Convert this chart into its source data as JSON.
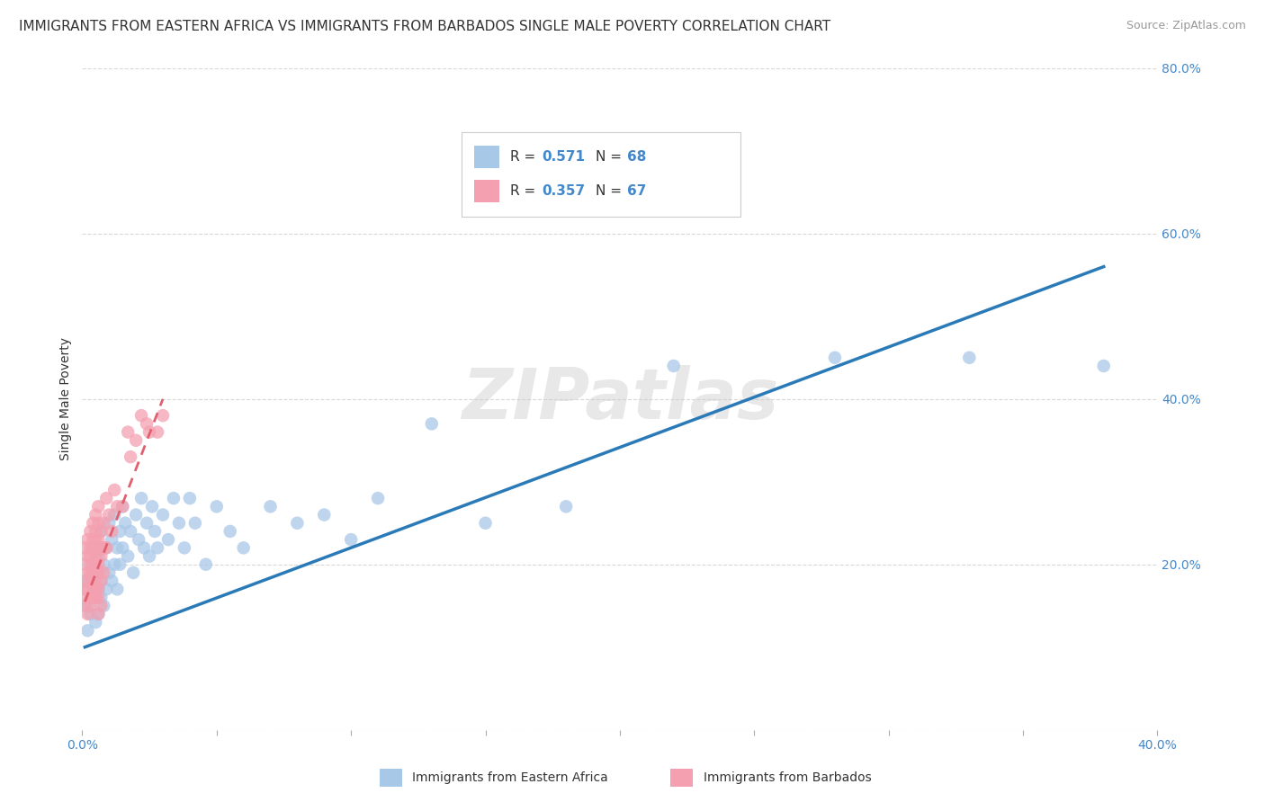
{
  "title": "IMMIGRANTS FROM EASTERN AFRICA VS IMMIGRANTS FROM BARBADOS SINGLE MALE POVERTY CORRELATION CHART",
  "source": "Source: ZipAtlas.com",
  "ylabel": "Single Male Poverty",
  "xlim": [
    0,
    0.4
  ],
  "ylim": [
    0,
    0.8
  ],
  "series1_name": "Immigrants from Eastern Africa",
  "series1_color": "#a8c8e8",
  "series1_line_color": "#2a7ab8",
  "series1_R": 0.571,
  "series1_N": 68,
  "series2_name": "Immigrants from Barbados",
  "series2_color": "#f4a0b0",
  "series2_line_color": "#e06070",
  "series2_R": 0.357,
  "series2_N": 67,
  "watermark": "ZIPatlas",
  "background_color": "#ffffff",
  "grid_color": "#d8d8d8",
  "series1_x": [
    0.001,
    0.002,
    0.002,
    0.003,
    0.003,
    0.004,
    0.004,
    0.005,
    0.005,
    0.005,
    0.006,
    0.006,
    0.006,
    0.007,
    0.007,
    0.007,
    0.008,
    0.008,
    0.009,
    0.009,
    0.01,
    0.01,
    0.011,
    0.011,
    0.012,
    0.012,
    0.013,
    0.013,
    0.014,
    0.014,
    0.015,
    0.015,
    0.016,
    0.017,
    0.018,
    0.019,
    0.02,
    0.021,
    0.022,
    0.023,
    0.024,
    0.025,
    0.026,
    0.027,
    0.028,
    0.03,
    0.032,
    0.034,
    0.036,
    0.038,
    0.04,
    0.042,
    0.046,
    0.05,
    0.055,
    0.06,
    0.07,
    0.08,
    0.09,
    0.1,
    0.11,
    0.13,
    0.15,
    0.18,
    0.22,
    0.28,
    0.33,
    0.38
  ],
  "series1_y": [
    0.18,
    0.15,
    0.12,
    0.2,
    0.14,
    0.18,
    0.22,
    0.16,
    0.13,
    0.19,
    0.17,
    0.21,
    0.14,
    0.18,
    0.24,
    0.16,
    0.2,
    0.15,
    0.22,
    0.17,
    0.25,
    0.19,
    0.23,
    0.18,
    0.2,
    0.26,
    0.22,
    0.17,
    0.24,
    0.2,
    0.27,
    0.22,
    0.25,
    0.21,
    0.24,
    0.19,
    0.26,
    0.23,
    0.28,
    0.22,
    0.25,
    0.21,
    0.27,
    0.24,
    0.22,
    0.26,
    0.23,
    0.28,
    0.25,
    0.22,
    0.28,
    0.25,
    0.2,
    0.27,
    0.24,
    0.22,
    0.27,
    0.25,
    0.26,
    0.23,
    0.28,
    0.37,
    0.25,
    0.27,
    0.44,
    0.45,
    0.45,
    0.44
  ],
  "series2_x": [
    0.001,
    0.001,
    0.001,
    0.001,
    0.002,
    0.002,
    0.002,
    0.002,
    0.002,
    0.002,
    0.002,
    0.003,
    0.003,
    0.003,
    0.003,
    0.003,
    0.003,
    0.003,
    0.004,
    0.004,
    0.004,
    0.004,
    0.004,
    0.004,
    0.004,
    0.005,
    0.005,
    0.005,
    0.005,
    0.005,
    0.005,
    0.005,
    0.005,
    0.005,
    0.005,
    0.006,
    0.006,
    0.006,
    0.006,
    0.006,
    0.006,
    0.006,
    0.006,
    0.006,
    0.007,
    0.007,
    0.007,
    0.007,
    0.007,
    0.008,
    0.008,
    0.008,
    0.009,
    0.009,
    0.01,
    0.011,
    0.012,
    0.013,
    0.015,
    0.017,
    0.018,
    0.02,
    0.022,
    0.024,
    0.025,
    0.028,
    0.03
  ],
  "series2_y": [
    0.2,
    0.17,
    0.15,
    0.22,
    0.19,
    0.16,
    0.23,
    0.17,
    0.14,
    0.21,
    0.18,
    0.22,
    0.19,
    0.16,
    0.24,
    0.18,
    0.15,
    0.21,
    0.23,
    0.2,
    0.17,
    0.25,
    0.19,
    0.16,
    0.22,
    0.24,
    0.21,
    0.18,
    0.26,
    0.22,
    0.19,
    0.16,
    0.23,
    0.2,
    0.17,
    0.25,
    0.22,
    0.19,
    0.16,
    0.23,
    0.2,
    0.17,
    0.14,
    0.27,
    0.24,
    0.21,
    0.18,
    0.15,
    0.22,
    0.25,
    0.22,
    0.19,
    0.28,
    0.22,
    0.26,
    0.24,
    0.29,
    0.27,
    0.27,
    0.36,
    0.33,
    0.35,
    0.38,
    0.37,
    0.36,
    0.36,
    0.38
  ],
  "blue_line_x": [
    0.001,
    0.38
  ],
  "blue_line_y": [
    0.1,
    0.56
  ],
  "pink_line_x": [
    0.001,
    0.03
  ],
  "pink_line_y": [
    0.155,
    0.4
  ]
}
